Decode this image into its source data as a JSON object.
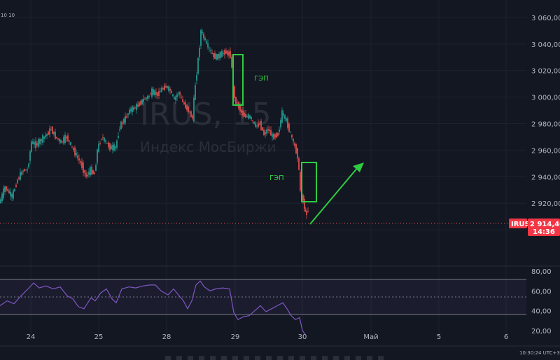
{
  "header": {
    "fragment": "10 10"
  },
  "watermark": {
    "symbol_line": "IRUS, 15",
    "name_line": "Индекс МосБиржи"
  },
  "annotations": {
    "gap_label_1": "ГЭП",
    "gap_label_2": "ГЭП"
  },
  "price_badge": {
    "symbol": "IRUS",
    "price": "2 914,40",
    "countdown": "14:36"
  },
  "bottom_clock": "10:30:24 UTC+3",
  "colors": {
    "up": "#26a69a",
    "down": "#ef5350",
    "rsi": "#7e57c2",
    "annotation": "#2ecc40",
    "badge": "#f23645",
    "background": "#131722"
  },
  "chart_data": [
    {
      "type": "candlestick",
      "title": "",
      "ylim": [
        2890,
        3070
      ],
      "price_ticks": [
        "3 060,00",
        "3 040,00",
        "3 020,00",
        "3 000,00",
        "2 980,00",
        "2 960,00",
        "2 940,00",
        "2 920,00",
        "2 900,00"
      ],
      "date_ticks": [
        "24",
        "25",
        "28",
        "29",
        "30",
        "Май",
        "5",
        "6"
      ],
      "last_price": 2914.4,
      "path": [
        [
          0,
          2920
        ],
        [
          8,
          2932
        ],
        [
          18,
          2925
        ],
        [
          26,
          2938
        ],
        [
          34,
          2945
        ],
        [
          40,
          2945
        ],
        [
          46,
          2966
        ],
        [
          52,
          2964
        ],
        [
          60,
          2968
        ],
        [
          68,
          2972
        ],
        [
          74,
          2976
        ],
        [
          80,
          2970
        ],
        [
          88,
          2966
        ],
        [
          96,
          2970
        ],
        [
          104,
          2962
        ],
        [
          112,
          2954
        ],
        [
          118,
          2948
        ],
        [
          124,
          2940
        ],
        [
          130,
          2945
        ],
        [
          136,
          2942
        ],
        [
          140,
          2960
        ],
        [
          146,
          2970
        ],
        [
          152,
          2966
        ],
        [
          158,
          2962
        ],
        [
          166,
          2962
        ],
        [
          172,
          2978
        ],
        [
          180,
          2984
        ],
        [
          186,
          2990
        ],
        [
          194,
          2992
        ],
        [
          200,
          2995
        ],
        [
          206,
          2998
        ],
        [
          212,
          3000
        ],
        [
          218,
          3004
        ],
        [
          226,
          3002
        ],
        [
          232,
          3006
        ],
        [
          238,
          3008
        ],
        [
          244,
          3005
        ],
        [
          250,
          2998
        ],
        [
          256,
          3004
        ],
        [
          262,
          2996
        ],
        [
          270,
          2990
        ],
        [
          276,
          2984
        ],
        [
          280,
          3010
        ],
        [
          284,
          3028
        ],
        [
          288,
          3050
        ],
        [
          292,
          3045
        ],
        [
          296,
          3040
        ],
        [
          300,
          3036
        ],
        [
          304,
          3032
        ],
        [
          310,
          3030
        ],
        [
          316,
          3032
        ],
        [
          322,
          3034
        ],
        [
          330,
          3032
        ],
        [
          336,
          2998
        ],
        [
          340,
          2995
        ],
        [
          344,
          2990
        ],
        [
          350,
          2986
        ],
        [
          358,
          2985
        ],
        [
          366,
          2978
        ],
        [
          372,
          2980
        ],
        [
          378,
          2972
        ],
        [
          384,
          2976
        ],
        [
          390,
          2970
        ],
        [
          398,
          2972
        ],
        [
          404,
          2988
        ],
        [
          410,
          2982
        ],
        [
          416,
          2972
        ],
        [
          420,
          2966
        ],
        [
          426,
          2956
        ],
        [
          430,
          2930
        ],
        [
          434,
          2922
        ],
        [
          437,
          2912
        ],
        [
          441,
          2914.4
        ]
      ]
    },
    {
      "type": "line",
      "title": "",
      "ylim": [
        10,
        85
      ],
      "rsi_ticks": [
        "80,00",
        "60,00",
        "40,00",
        "20,00"
      ],
      "band_levels": [
        70,
        50,
        30
      ],
      "path": [
        [
          0,
          45
        ],
        [
          10,
          50
        ],
        [
          20,
          47
        ],
        [
          30,
          55
        ],
        [
          40,
          62
        ],
        [
          48,
          68
        ],
        [
          56,
          63
        ],
        [
          66,
          65
        ],
        [
          76,
          62
        ],
        [
          86,
          64
        ],
        [
          96,
          55
        ],
        [
          104,
          52
        ],
        [
          112,
          44
        ],
        [
          120,
          42
        ],
        [
          130,
          53
        ],
        [
          136,
          50
        ],
        [
          144,
          58
        ],
        [
          152,
          62
        ],
        [
          160,
          52
        ],
        [
          166,
          48
        ],
        [
          174,
          62
        ],
        [
          184,
          64
        ],
        [
          194,
          63
        ],
        [
          204,
          65
        ],
        [
          214,
          66
        ],
        [
          222,
          66
        ],
        [
          230,
          60
        ],
        [
          240,
          56
        ],
        [
          248,
          62
        ],
        [
          256,
          55
        ],
        [
          262,
          50
        ],
        [
          268,
          42
        ],
        [
          274,
          50
        ],
        [
          280,
          66
        ],
        [
          286,
          70
        ],
        [
          292,
          64
        ],
        [
          300,
          60
        ],
        [
          308,
          62
        ],
        [
          318,
          63
        ],
        [
          328,
          62
        ],
        [
          334,
          38
        ],
        [
          340,
          31
        ],
        [
          348,
          34
        ],
        [
          356,
          35
        ],
        [
          364,
          40
        ],
        [
          372,
          45
        ],
        [
          380,
          39
        ],
        [
          388,
          42
        ],
        [
          396,
          45
        ],
        [
          404,
          48
        ],
        [
          410,
          42
        ],
        [
          416,
          35
        ],
        [
          422,
          31
        ],
        [
          428,
          33
        ],
        [
          432,
          20
        ],
        [
          436,
          16
        ]
      ]
    }
  ]
}
